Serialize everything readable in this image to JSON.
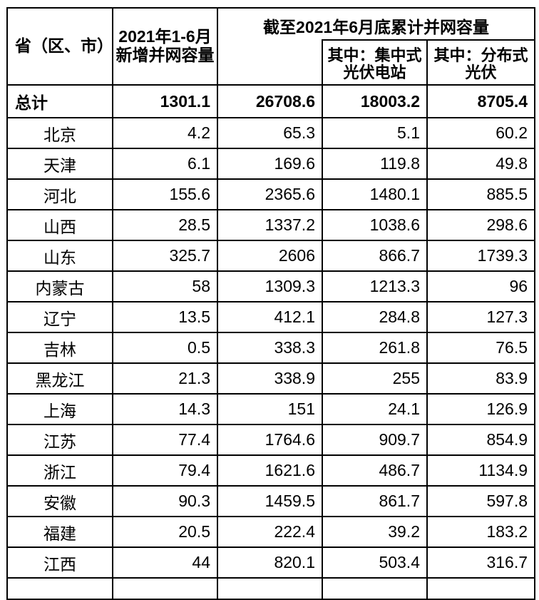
{
  "colors": {
    "background": "#ffffff",
    "border": "#000000",
    "text": "#000000"
  },
  "table": {
    "headers": {
      "province": "省（区、市）",
      "new_capacity_line1": "2021年1-6月",
      "new_capacity_line2": "新增并网容量",
      "cumulative_group": "截至2021年6月底累计并网容量",
      "centralized_line1": "其中：集中式",
      "centralized_line2": "光伏电站",
      "distributed_line1": "其中：分布式",
      "distributed_line2": "光伏"
    },
    "total_row": {
      "label": "总计",
      "values": [
        "1301.1",
        "26708.6",
        "18003.2",
        "8705.4"
      ]
    },
    "rows": [
      {
        "province": "北京",
        "values": [
          "4.2",
          "65.3",
          "5.1",
          "60.2"
        ]
      },
      {
        "province": "天津",
        "values": [
          "6.1",
          "169.6",
          "119.8",
          "49.8"
        ]
      },
      {
        "province": "河北",
        "values": [
          "155.6",
          "2365.6",
          "1480.1",
          "885.5"
        ]
      },
      {
        "province": "山西",
        "values": [
          "28.5",
          "1337.2",
          "1038.6",
          "298.6"
        ]
      },
      {
        "province": "山东",
        "values": [
          "325.7",
          "2606",
          "866.7",
          "1739.3"
        ]
      },
      {
        "province": "内蒙古",
        "values": [
          "58",
          "1309.3",
          "1213.3",
          "96"
        ]
      },
      {
        "province": "辽宁",
        "values": [
          "13.5",
          "412.1",
          "284.8",
          "127.3"
        ]
      },
      {
        "province": "吉林",
        "values": [
          "0.5",
          "338.3",
          "261.8",
          "76.5"
        ]
      },
      {
        "province": "黑龙江",
        "values": [
          "21.3",
          "338.9",
          "255",
          "83.9"
        ]
      },
      {
        "province": "上海",
        "values": [
          "14.3",
          "151",
          "24.1",
          "126.9"
        ]
      },
      {
        "province": "江苏",
        "values": [
          "77.4",
          "1764.6",
          "909.7",
          "854.9"
        ]
      },
      {
        "province": "浙江",
        "values": [
          "79.4",
          "1621.6",
          "486.7",
          "1134.9"
        ]
      },
      {
        "province": "安徽",
        "values": [
          "90.3",
          "1459.5",
          "861.7",
          "597.8"
        ]
      },
      {
        "province": "福建",
        "values": [
          "20.5",
          "222.4",
          "39.2",
          "183.2"
        ]
      },
      {
        "province": "江西",
        "values": [
          "44",
          "820.1",
          "503.4",
          "316.7"
        ]
      }
    ]
  }
}
